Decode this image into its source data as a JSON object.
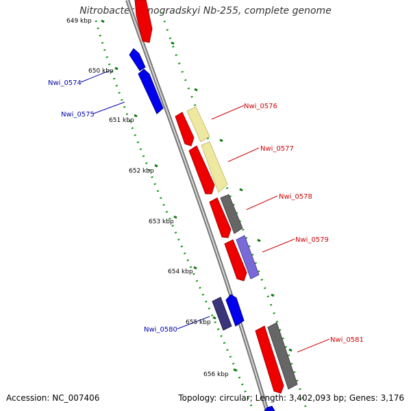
{
  "title_parts": {
    "organism": "Nitrobacter winogradskyi",
    "rest": " Nb-255, complete genome"
  },
  "footer": {
    "accession_label": "Accession:",
    "accession": "NC_007406",
    "topology_label": "Topology:",
    "topology": "circular",
    "length_label": "Length:",
    "length": "3,402,093 bp",
    "genes_label": "Genes:",
    "genes": "3,176"
  },
  "ticks": [
    "649 kbp",
    "650 kbp",
    "651 kbp",
    "652 kbp",
    "653 kbp",
    "654 kbp",
    "655 kbp",
    "656 kbp"
  ],
  "colors": {
    "forward_gene": "#ee0000",
    "reverse_gene": "#0000ee",
    "gray_feature": "#666666",
    "pale_yellow_feature": "#eee8a0",
    "lavender_feature": "#7a6ad8",
    "navy_feature": "#3a3478",
    "forward_label": "#cc0000",
    "reverse_label": "#0000aa",
    "tick_green": "#117711",
    "backbone": "#888888"
  },
  "gene_labels": [
    {
      "id": "lbl-nwi-0574",
      "text": "Nwi_0574",
      "strand": "reverse"
    },
    {
      "id": "lbl-nwi-0575",
      "text": "Nwi_0575",
      "strand": "reverse"
    },
    {
      "id": "lbl-nwi-0576",
      "text": "Nwi_0576",
      "strand": "forward"
    },
    {
      "id": "lbl-nwi-0577",
      "text": "Nwi_0577",
      "strand": "forward"
    },
    {
      "id": "lbl-nwi-0578",
      "text": "Nwi_0578",
      "strand": "forward"
    },
    {
      "id": "lbl-nwi-0579",
      "text": "Nwi_0579",
      "strand": "forward"
    },
    {
      "id": "lbl-nwi-0580",
      "text": "Nwi_0580",
      "strand": "reverse"
    },
    {
      "id": "lbl-nwi-0581",
      "text": "Nwi_0581",
      "strand": "forward"
    }
  ]
}
